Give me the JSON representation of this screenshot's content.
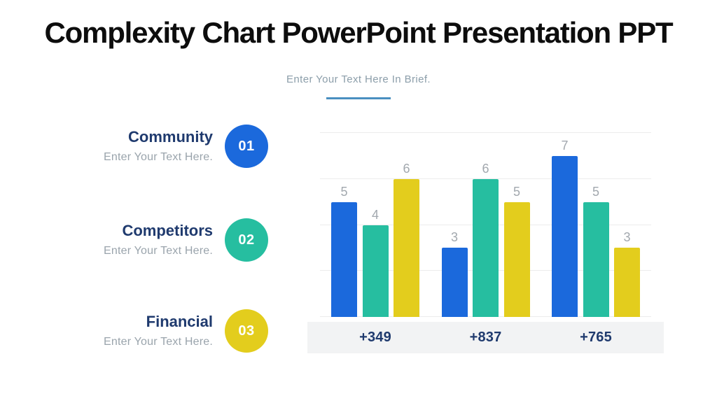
{
  "slide": {
    "title": "Complexity Chart PowerPoint Presentation PPT",
    "subtitle": "Enter Your Text Here In Brief."
  },
  "list": {
    "items": [
      {
        "title": "Community",
        "description": "Enter Your Text Here.",
        "number": "01",
        "color": "#1b69dc"
      },
      {
        "title": "Competitors",
        "description": "Enter Your Text Here.",
        "number": "02",
        "color": "#26bea0"
      },
      {
        "title": "Financial",
        "description": "Enter Your Text Here.",
        "number": "03",
        "color": "#e3cd1d"
      }
    ]
  },
  "chart_data": {
    "type": "bar",
    "title": "",
    "xlabel": "",
    "ylabel": "",
    "categories": [
      "+349",
      "+837",
      "+765"
    ],
    "series": [
      {
        "name": "series-blue",
        "color": "#1b69dc",
        "values": [
          5,
          3,
          7
        ]
      },
      {
        "name": "series-green",
        "color": "#26bea0",
        "values": [
          4,
          6,
          5
        ]
      },
      {
        "name": "series-yellow",
        "color": "#e3cd1d",
        "values": [
          6,
          5,
          3
        ]
      }
    ],
    "ylim": [
      0,
      8
    ],
    "gridline_values": [
      0,
      2,
      4,
      6,
      8
    ],
    "grid": true,
    "legend": false,
    "value_labels": true
  },
  "colors": {
    "accent_blue": "#1b69dc",
    "accent_green": "#26bea0",
    "accent_yellow": "#e3cd1d",
    "navy_text": "#1f3a6e",
    "gray_text": "#9aa4ac",
    "value_label_gray": "#a2a8ae",
    "band_background": "#f2f3f4",
    "gridline": "#ececec",
    "subtitle_gray": "#8c9eaa",
    "underline_blue": "#4a8fc0",
    "title_black": "#0d0d0d"
  }
}
